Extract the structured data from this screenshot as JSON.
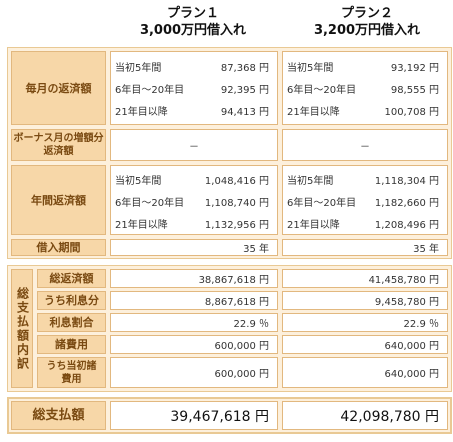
{
  "plans": [
    {
      "name": "プラン１",
      "amount": "3,000万円借入れ"
    },
    {
      "name": "プラン２",
      "amount": "3,200万円借入れ"
    }
  ],
  "labels": {
    "monthly": "毎月の返済額",
    "bonus": "ボーナス月の増額分返済額",
    "annual": "年間返済額",
    "term": "借入期間",
    "breakdown": "総支払額内訳",
    "total_repay": "総返済額",
    "interest": "うち利息分",
    "interest_ratio": "利息割合",
    "fees": "諸費用",
    "initial_fees": "うち当初諸費用",
    "total": "総支払額"
  },
  "periods": [
    "当初5年間",
    "6年目〜20年目",
    "21年目以降"
  ],
  "plan1": {
    "monthly": [
      "87,368 円",
      "92,395 円",
      "94,413 円"
    ],
    "bonus": "－",
    "annual": [
      "1,048,416 円",
      "1,108,740 円",
      "1,132,956 円"
    ],
    "term": "35 年",
    "total_repay": "38,867,618 円",
    "interest": "8,867,618 円",
    "interest_ratio": "22.9 ％",
    "fees": "600,000 円",
    "initial_fees": "600,000 円",
    "total": "39,467,618 円"
  },
  "plan2": {
    "monthly": [
      "93,192 円",
      "98,555 円",
      "100,708 円"
    ],
    "bonus": "－",
    "annual": [
      "1,118,304 円",
      "1,182,660 円",
      "1,208,496 円"
    ],
    "term": "35 年",
    "total_repay": "41,458,780 円",
    "interest": "9,458,780 円",
    "interest_ratio": "22.9 ％",
    "fees": "640,000 円",
    "initial_fees": "640,000 円",
    "total": "42,098,780 円"
  }
}
